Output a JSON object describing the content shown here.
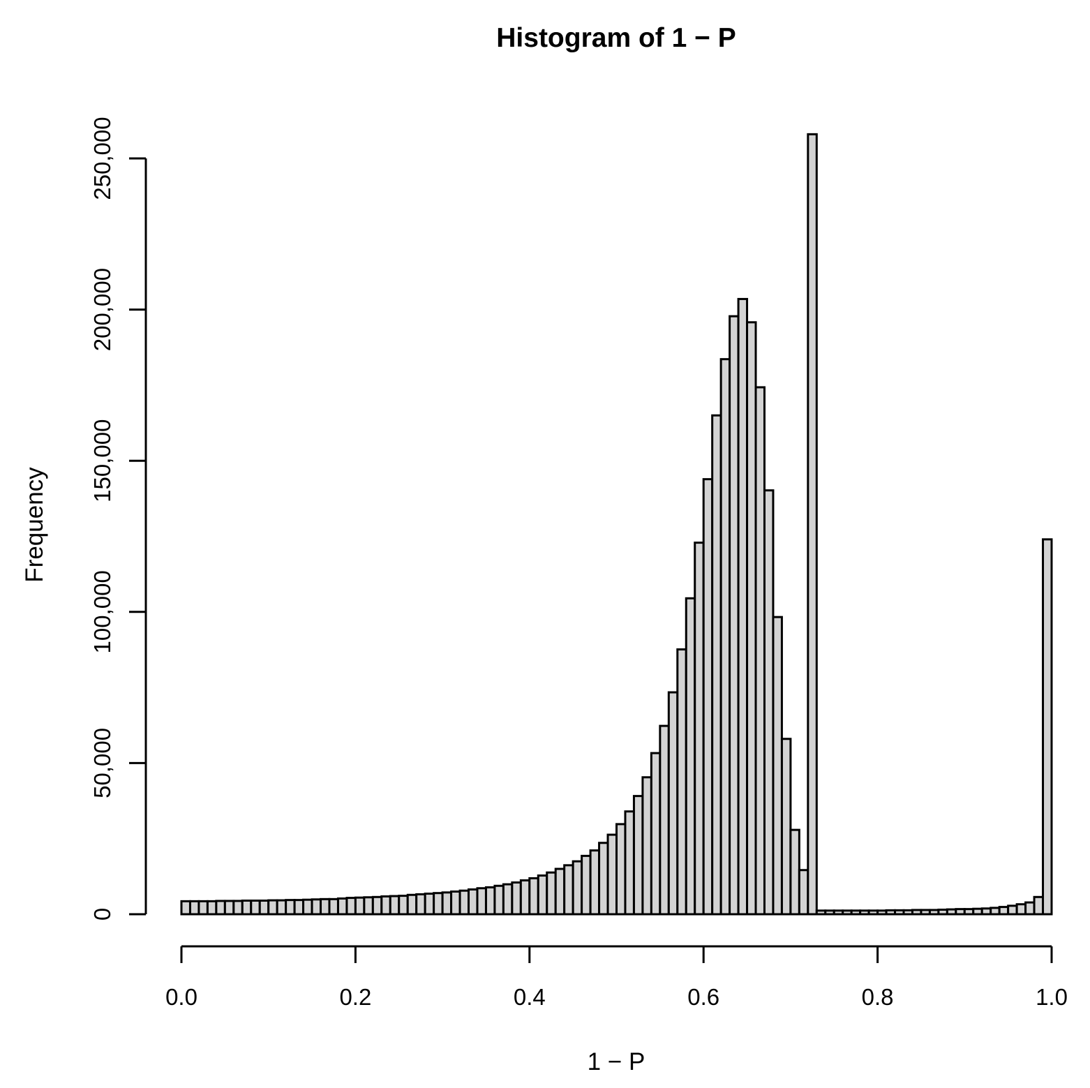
{
  "chart_data": {
    "type": "bar",
    "title": "Histogram of 1 − P",
    "xlabel": "1 − P",
    "ylabel": "Frequency",
    "xlim": [
      0,
      1
    ],
    "ylim": [
      0,
      258000
    ],
    "x_ticks": [
      0,
      0.2,
      0.4,
      0.6,
      0.8,
      1.0
    ],
    "x_tick_labels": [
      "0.0",
      "0.2",
      "0.4",
      "0.6",
      "0.8",
      "1.0"
    ],
    "y_ticks": [
      0,
      50000,
      100000,
      150000,
      200000,
      250000
    ],
    "y_tick_labels": [
      "0",
      "50,000",
      "100,000",
      "150,000",
      "200,000",
      "250,000"
    ],
    "bin_width": 0.01,
    "bin_starts": [
      0.0,
      0.01,
      0.02,
      0.03,
      0.04,
      0.05,
      0.06,
      0.07,
      0.08,
      0.09,
      0.1,
      0.11,
      0.12,
      0.13,
      0.14,
      0.15,
      0.16,
      0.17,
      0.18,
      0.19,
      0.2,
      0.21,
      0.22,
      0.23,
      0.24,
      0.25,
      0.26,
      0.27,
      0.28,
      0.29,
      0.3,
      0.31,
      0.32,
      0.33,
      0.34,
      0.35,
      0.36,
      0.37,
      0.38,
      0.39,
      0.4,
      0.41,
      0.42,
      0.43,
      0.44,
      0.45,
      0.46,
      0.47,
      0.48,
      0.49,
      0.5,
      0.51,
      0.52,
      0.53,
      0.54,
      0.55,
      0.56,
      0.57,
      0.58,
      0.59,
      0.6,
      0.61,
      0.62,
      0.63,
      0.64,
      0.65,
      0.66,
      0.67,
      0.68,
      0.69,
      0.7,
      0.71,
      0.72,
      0.73,
      0.74,
      0.75,
      0.76,
      0.77,
      0.78,
      0.79,
      0.8,
      0.81,
      0.82,
      0.83,
      0.84,
      0.85,
      0.86,
      0.87,
      0.88,
      0.89,
      0.9,
      0.91,
      0.92,
      0.93,
      0.94,
      0.95,
      0.96,
      0.97,
      0.98,
      0.99
    ],
    "values": [
      4300,
      4300,
      4300,
      4300,
      4400,
      4400,
      4400,
      4500,
      4500,
      4500,
      4600,
      4600,
      4700,
      4700,
      4800,
      4900,
      5000,
      5000,
      5200,
      5400,
      5500,
      5600,
      5700,
      5900,
      6000,
      6100,
      6400,
      6600,
      6800,
      7000,
      7200,
      7500,
      7800,
      8200,
      8600,
      8900,
      9400,
      9900,
      10500,
      11200,
      11900,
      12800,
      13800,
      15000,
      16200,
      17500,
      19300,
      21100,
      23600,
      26300,
      29800,
      34000,
      39100,
      45300,
      53300,
      62300,
      73400,
      87600,
      104500,
      122900,
      143900,
      165000,
      183600,
      197800,
      203500,
      195800,
      174300,
      140200,
      98300,
      58000,
      27900,
      14600,
      258000,
      1200,
      1200,
      1200,
      1200,
      1200,
      1200,
      1200,
      1200,
      1300,
      1300,
      1300,
      1400,
      1400,
      1400,
      1500,
      1600,
      1700,
      1700,
      1800,
      1900,
      2100,
      2400,
      2800,
      3300,
      3900,
      5700,
      124000
    ]
  }
}
